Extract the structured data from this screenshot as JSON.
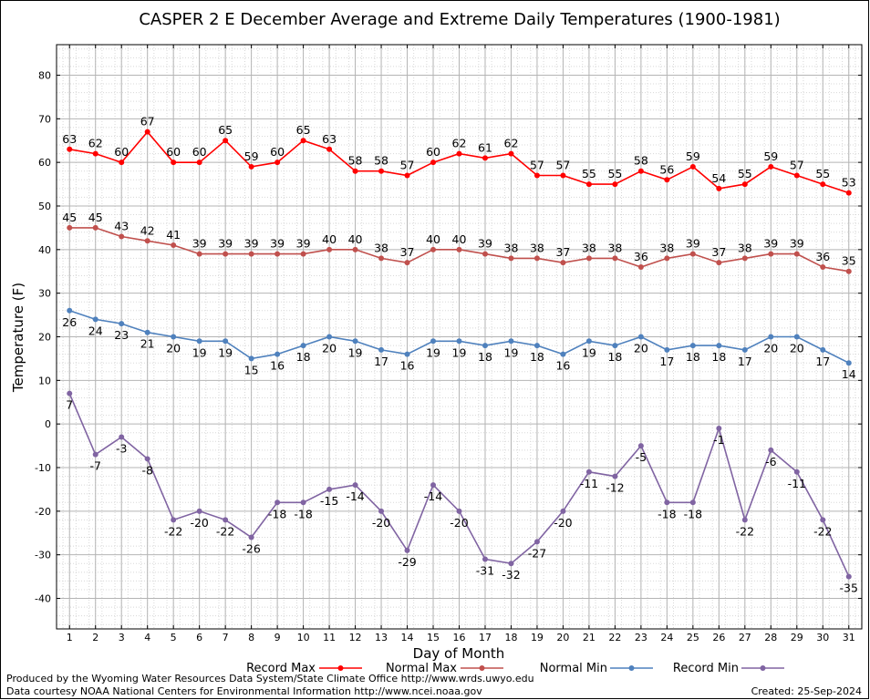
{
  "chart_data": {
    "type": "line",
    "title": "CASPER 2 E December Average and Extreme Daily Temperatures (1900-1981)",
    "xlabel": "Day of Month",
    "ylabel": "Temperature (F)",
    "x": [
      1,
      2,
      3,
      4,
      5,
      6,
      7,
      8,
      9,
      10,
      11,
      12,
      13,
      14,
      15,
      16,
      17,
      18,
      19,
      20,
      21,
      22,
      23,
      24,
      25,
      26,
      27,
      28,
      29,
      30,
      31
    ],
    "xlim": [
      0.5,
      31.5
    ],
    "ylim": [
      -47,
      87
    ],
    "yticks": [
      -40,
      -30,
      -20,
      -10,
      0,
      10,
      20,
      30,
      40,
      50,
      60,
      70,
      80
    ],
    "grid": true,
    "legend_position": "bottom",
    "series": [
      {
        "name": "Record Max",
        "color": "#ff0000",
        "values": [
          63,
          62,
          60,
          67,
          60,
          60,
          65,
          59,
          60,
          65,
          63,
          58,
          58,
          57,
          60,
          62,
          61,
          62,
          57,
          57,
          55,
          55,
          58,
          56,
          59,
          54,
          55,
          59,
          57,
          55,
          53
        ]
      },
      {
        "name": "Normal Max",
        "color": "#c0504d",
        "values": [
          45,
          45,
          43,
          42,
          41,
          39,
          39,
          39,
          39,
          39,
          40,
          40,
          38,
          37,
          40,
          40,
          39,
          38,
          38,
          37,
          38,
          38,
          36,
          38,
          39,
          37,
          38,
          39,
          39,
          36,
          35
        ]
      },
      {
        "name": "Normal Min",
        "color": "#4f81bd",
        "values": [
          26,
          24,
          23,
          21,
          20,
          19,
          19,
          15,
          16,
          18,
          20,
          19,
          17,
          16,
          19,
          19,
          18,
          19,
          18,
          16,
          19,
          18,
          20,
          17,
          18,
          18,
          17,
          20,
          20,
          17,
          14
        ]
      },
      {
        "name": "Record Min",
        "color": "#8064a2",
        "values": [
          7,
          -7,
          -3,
          -8,
          -22,
          -20,
          -22,
          -26,
          -18,
          -18,
          -15,
          -14,
          -20,
          -29,
          -14,
          -20,
          -31,
          -32,
          -27,
          -20,
          -11,
          -12,
          -5,
          -18,
          -18,
          -1,
          -22,
          -6,
          -11,
          -22,
          -35
        ]
      }
    ]
  },
  "footer": {
    "line1": "Produced by the Wyoming Water Resources Data System/State Climate Office http://www.wrds.uwyo.edu",
    "line2": "Data courtesy NOAA National Centers for Environmental Information http://www.ncei.noaa.gov",
    "created": "Created:  25-Sep-2024"
  }
}
